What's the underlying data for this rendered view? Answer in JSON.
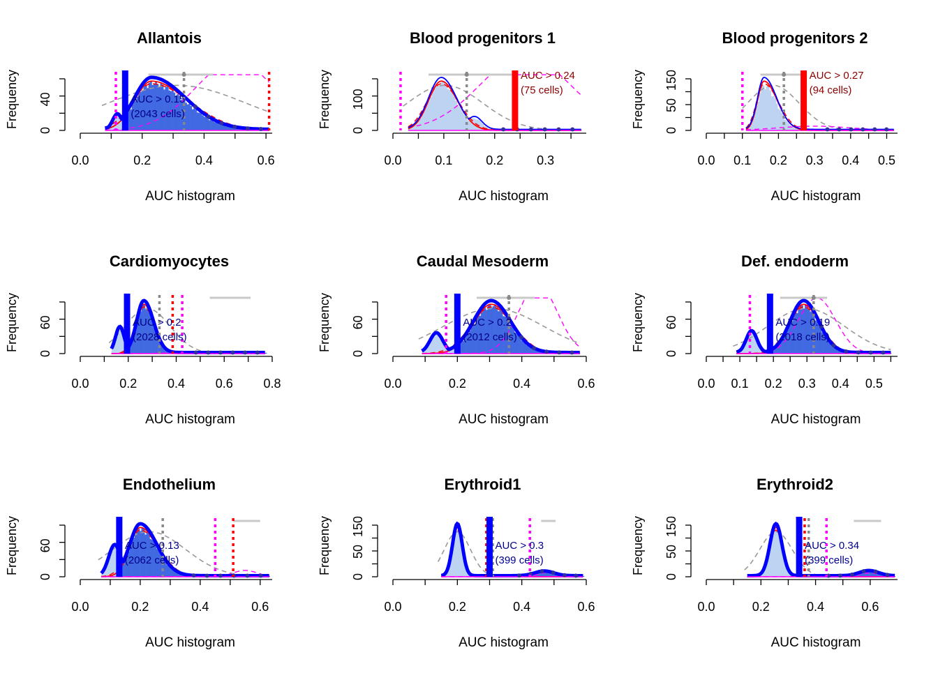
{
  "axis_common": {
    "ylabel": "Frequency",
    "xlabel": "AUC histogram"
  },
  "colors": {
    "hist_light": "#BCD3F2",
    "hist_dark": "#4169E1",
    "threshold_blue": "#0000FF",
    "threshold_red": "#FF0000",
    "annot_blue": "#00008B",
    "annot_red": "#8B0000",
    "density_red": "#FF0000",
    "density_gray": "#999999",
    "magenta": "#FF00FF",
    "range_gray": "#C8C8C8",
    "gray_dot": "#888888"
  },
  "chart_data": [
    {
      "title": "Allantois",
      "type": "histogram",
      "xlabel": "AUC histogram",
      "ylabel": "Frequency",
      "xlim": [
        0,
        0.62
      ],
      "xticks": [
        "0.0",
        "0.2",
        "0.4",
        "0.6"
      ],
      "yticks": [
        "0",
        "40"
      ],
      "ymax": 85,
      "hist": {
        "lo": 0.08,
        "hi": 0.61,
        "peak": 0.23,
        "sl": 0.055,
        "sr": 0.11,
        "small": {
          "c": 0.12,
          "s": 0.015,
          "h": 0.3
        },
        "top": 0.93
      },
      "threshold": 0.145,
      "threshold_color": "blue",
      "annotation": [
        "AUC > 0.15",
        "(2043 cells)"
      ],
      "red_dotted": [
        0.61
      ],
      "magenta_dotted": [
        0.115
      ],
      "gray_dotted": [
        0.335
      ],
      "range": [
        0.22,
        0.43
      ],
      "range_dots": [
        0.335
      ],
      "magenta_curve": {
        "c": 0.5,
        "s": 0.13,
        "h": 1.3
      }
    },
    {
      "title": "Blood progenitors 1",
      "type": "histogram",
      "xlabel": "AUC histogram",
      "ylabel": "Frequency",
      "xlim": [
        0,
        0.38
      ],
      "xticks": [
        "0.0",
        "0.1",
        "0.2",
        "0.3"
      ],
      "yticks": [
        "0",
        "100"
      ],
      "ymax": 180,
      "hist": {
        "lo": 0.03,
        "hi": 0.37,
        "peak": 0.095,
        "sl": 0.025,
        "sr": 0.03,
        "small": {
          "c": 0.16,
          "s": 0.015,
          "h": 0.25
        },
        "top": 0.95
      },
      "threshold": 0.24,
      "threshold_color": "red",
      "annotation": [
        "AUC > 0.24",
        "(75 cells)"
      ],
      "red_dotted": [],
      "magenta_dotted": [
        0.015
      ],
      "gray_dotted": [
        0.145
      ],
      "range": [
        0.07,
        0.245
      ],
      "range_dots": [
        0.145
      ],
      "magenta_curve": {
        "c": 0.26,
        "s": 0.09,
        "h": 1.4
      }
    },
    {
      "title": "Blood progenitors 2",
      "type": "histogram",
      "xlabel": "AUC histogram",
      "ylabel": "Frequency",
      "xlim": [
        0,
        0.53
      ],
      "xticks": [
        "0.0",
        "0.1",
        "0.2",
        "0.3",
        "0.4",
        "0.5"
      ],
      "yticks": [
        "0",
        "50",
        "150"
      ],
      "ymax": 230,
      "hist": {
        "lo": 0.11,
        "hi": 0.52,
        "peak": 0.16,
        "sl": 0.018,
        "sr": 0.035,
        "small": null,
        "top": 0.88
      },
      "threshold": 0.27,
      "threshold_color": "red",
      "annotation": [
        "AUC > 0.27",
        "(94 cells)"
      ],
      "red_dotted": [],
      "magenta_dotted": [
        0.1
      ],
      "gray_dotted": [
        0.215
      ],
      "range": [
        0.15,
        0.27
      ],
      "range_dots": [
        0.215
      ],
      "magenta_curve": {
        "c": 0.3,
        "s": 0.1,
        "h": 0.08
      }
    },
    {
      "title": "Cardiomyocytes",
      "type": "histogram",
      "xlabel": "AUC histogram",
      "ylabel": "Frequency",
      "xlim": [
        0,
        0.8
      ],
      "xticks": [
        "0.0",
        "0.2",
        "0.4",
        "0.6",
        "0.8"
      ],
      "yticks": [
        "0",
        "60"
      ],
      "ymax": 135,
      "hist": {
        "lo": 0.13,
        "hi": 0.77,
        "peak": 0.265,
        "sl": 0.03,
        "sr": 0.04,
        "small": {
          "c": 0.165,
          "s": 0.018,
          "h": 0.5
        },
        "top": 0.95
      },
      "threshold": 0.195,
      "threshold_color": "blue",
      "annotation": [
        "AUC > 0.2",
        "(2028 cells)"
      ],
      "red_dotted": [
        0.385
      ],
      "magenta_dotted": [
        0.425
      ],
      "gray_dotted": [
        0.33
      ],
      "range": [
        0.54,
        0.71
      ],
      "range_dots": [],
      "magenta_curve": {
        "c": 0.5,
        "s": 0.1,
        "h": 0.03
      }
    },
    {
      "title": "Caudal Mesoderm",
      "type": "histogram",
      "xlabel": "AUC histogram",
      "ylabel": "Frequency",
      "xlim": [
        0,
        0.6
      ],
      "xticks": [
        "0.0",
        "0.2",
        "0.4",
        "0.6"
      ],
      "yticks": [
        "0",
        "60"
      ],
      "ymax": 135,
      "hist": {
        "lo": 0.09,
        "hi": 0.58,
        "peak": 0.305,
        "sl": 0.055,
        "sr": 0.06,
        "small": {
          "c": 0.135,
          "s": 0.02,
          "h": 0.38
        },
        "top": 0.95
      },
      "threshold": 0.2,
      "threshold_color": "blue",
      "annotation": [
        "AUC > 0.2",
        "(2012 cells)"
      ],
      "red_dotted": [],
      "magenta_dotted": [
        0.165
      ],
      "gray_dotted": [
        0.36
      ],
      "range": [
        0.26,
        0.44
      ],
      "range_dots": [
        0.36
      ],
      "magenta_curve": {
        "c": 0.45,
        "s": 0.06,
        "h": 1.3
      }
    },
    {
      "title": "Def. endoderm",
      "type": "histogram",
      "xlabel": "AUC histogram",
      "ylabel": "Frequency",
      "xlim": [
        0,
        0.57
      ],
      "xticks": [
        "0.0",
        "0.1",
        "0.2",
        "0.3",
        "0.4",
        "0.5"
      ],
      "yticks": [
        "0",
        "60"
      ],
      "ymax": 135,
      "hist": {
        "lo": 0.09,
        "hi": 0.55,
        "peak": 0.29,
        "sl": 0.04,
        "sr": 0.045,
        "small": {
          "c": 0.135,
          "s": 0.016,
          "h": 0.42
        },
        "top": 0.95
      },
      "threshold": 0.19,
      "threshold_color": "blue",
      "annotation": [
        "AUC > 0.19",
        "(2018 cells)"
      ],
      "red_dotted": [],
      "magenta_dotted": [
        0.13
      ],
      "gray_dotted": [
        0.32
      ],
      "range": [
        0.22,
        0.36
      ],
      "range_dots": [
        0.32
      ],
      "magenta_curve": {
        "c": 0.33,
        "s": 0.055,
        "h": 1.05
      }
    },
    {
      "title": "Endothelium",
      "type": "histogram",
      "xlabel": "AUC histogram",
      "ylabel": "Frequency",
      "xlim": [
        0,
        0.64
      ],
      "xticks": [
        "0.0",
        "0.2",
        "0.4",
        "0.6"
      ],
      "yticks": [
        "0",
        "60"
      ],
      "ymax": 160,
      "hist": {
        "lo": 0.07,
        "hi": 0.63,
        "peak": 0.2,
        "sl": 0.035,
        "sr": 0.055,
        "small": {
          "c": 0.115,
          "s": 0.02,
          "h": 0.6
        },
        "top": 0.95
      },
      "threshold": 0.13,
      "threshold_color": "blue",
      "annotation": [
        "AUC > 0.13",
        "(2062 cells)"
      ],
      "red_dotted": [
        0.51
      ],
      "magenta_dotted": [
        0.45
      ],
      "gray_dotted": [
        0.275
      ],
      "range": [
        0.51,
        0.6
      ],
      "range_dots": [],
      "magenta_curve": {
        "c": 0.55,
        "s": 0.04,
        "h": 0.12
      }
    },
    {
      "title": "Erythroid1",
      "type": "histogram",
      "xlabel": "AUC histogram",
      "ylabel": "Frequency",
      "xlim": [
        0,
        0.6
      ],
      "xticks": [
        "0.0",
        "0.2",
        "0.4",
        "0.6"
      ],
      "yticks": [
        "0",
        "50",
        "150"
      ],
      "ymax": 260,
      "hist": {
        "lo": 0.15,
        "hi": 0.59,
        "peak": 0.2,
        "sl": 0.015,
        "sr": 0.015,
        "small": {
          "c": 0.47,
          "s": 0.03,
          "h": 0.09
        },
        "top": 0.96
      },
      "threshold": 0.3,
      "threshold_color": "blue",
      "annotation": [
        "AUC > 0.3",
        "(399 cells)"
      ],
      "red_dotted": [
        0.29
      ],
      "magenta_dotted": [
        0.425
      ],
      "gray_dotted": [
        0.31
      ],
      "range": [
        0.46,
        0.505
      ],
      "range_dots": [],
      "magenta_curve": {
        "c": 0.48,
        "s": 0.03,
        "h": 0.08
      }
    },
    {
      "title": "Erythroid2",
      "type": "histogram",
      "xlabel": "AUC histogram",
      "ylabel": "Frequency",
      "xlim": [
        0,
        0.7
      ],
      "xticks": [
        "0.0",
        "0.2",
        "0.4",
        "0.6"
      ],
      "yticks": [
        "0",
        "50",
        "150"
      ],
      "ymax": 250,
      "hist": {
        "lo": 0.15,
        "hi": 0.69,
        "peak": 0.255,
        "sl": 0.022,
        "sr": 0.022,
        "small": {
          "c": 0.595,
          "s": 0.035,
          "h": 0.1
        },
        "top": 0.96
      },
      "threshold": 0.34,
      "threshold_color": "blue",
      "annotation": [
        "AUC > 0.34",
        "(399 cells)"
      ],
      "red_dotted": [
        0.36
      ],
      "magenta_dotted": [
        0.44
      ],
      "gray_dotted": [
        0.375
      ],
      "range": [
        0.54,
        0.64
      ],
      "range_dots": [],
      "magenta_curve": {
        "c": 0.6,
        "s": 0.04,
        "h": 0.07
      }
    }
  ]
}
